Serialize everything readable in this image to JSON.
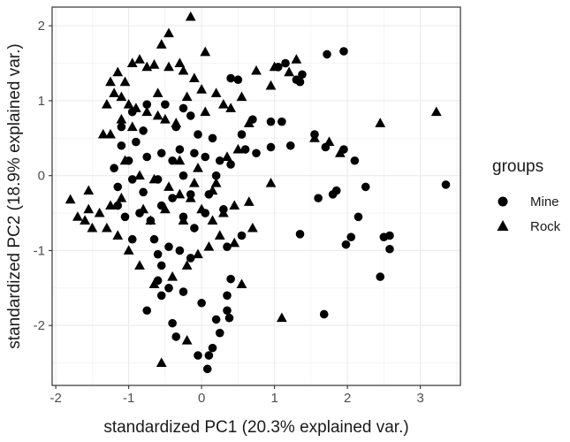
{
  "chart_data": {
    "type": "scatter",
    "title": "",
    "xlabel": "standardized PC1 (20.3% explained var.)",
    "ylabel": "standardized PC2 (18.9% explained var.)",
    "xlim": [
      -2.05,
      3.55
    ],
    "ylim": [
      -2.8,
      2.25
    ],
    "xticks": [
      -2,
      -1,
      0,
      1,
      2,
      3
    ],
    "yticks": [
      -2,
      -1,
      0,
      1,
      2
    ],
    "grid": true,
    "legend": {
      "title": "groups",
      "placement": "right",
      "entries": [
        {
          "label": "Mine",
          "marker": "circle"
        },
        {
          "label": "Rock",
          "marker": "triangle"
        }
      ]
    },
    "series": [
      {
        "name": "Mine",
        "marker": "circle",
        "points": [
          [
            1.72,
            1.62
          ],
          [
            1.95,
            1.66
          ],
          [
            1.38,
            1.35
          ],
          [
            1.3,
            1.28
          ],
          [
            1.05,
            1.45
          ],
          [
            1.15,
            1.5
          ],
          [
            1.35,
            1.25
          ],
          [
            0.5,
            1.28
          ],
          [
            0.4,
            1.3
          ],
          [
            1.55,
            0.55
          ],
          [
            1.7,
            0.38
          ],
          [
            1.22,
            0.4
          ],
          [
            0.95,
            0.38
          ],
          [
            0.6,
            0.35
          ],
          [
            0.7,
            0.75
          ],
          [
            0.55,
            0.55
          ],
          [
            0.95,
            0.72
          ],
          [
            1.1,
            0.72
          ],
          [
            0.75,
            0.3
          ],
          [
            2.1,
            0.2
          ],
          [
            1.95,
            0.35
          ],
          [
            2.25,
            -0.15
          ],
          [
            1.8,
            -0.25
          ],
          [
            1.85,
            -0.2
          ],
          [
            1.6,
            -0.3
          ],
          [
            1.35,
            -0.78
          ],
          [
            2.15,
            -0.55
          ],
          [
            2.05,
            -0.82
          ],
          [
            1.98,
            -0.92
          ],
          [
            2.5,
            -0.82
          ],
          [
            2.58,
            -0.8
          ],
          [
            2.58,
            -0.98
          ],
          [
            2.45,
            -1.35
          ],
          [
            1.68,
            -1.85
          ],
          [
            3.35,
            -0.12
          ],
          [
            0.35,
            -0.95
          ],
          [
            0.4,
            -1.38
          ],
          [
            0.35,
            -1.6
          ],
          [
            0.38,
            -1.9
          ],
          [
            0.35,
            -1.8
          ],
          [
            0.0,
            -1.7
          ],
          [
            0.2,
            -1.92
          ],
          [
            0.25,
            -2.1
          ],
          [
            -0.4,
            -1.97
          ],
          [
            -0.35,
            -2.15
          ],
          [
            0.1,
            -2.4
          ],
          [
            0.15,
            -2.3
          ],
          [
            -0.05,
            -2.4
          ],
          [
            0.08,
            -2.58
          ],
          [
            -0.75,
            -1.8
          ],
          [
            -0.55,
            -1.6
          ],
          [
            -0.25,
            -1.55
          ],
          [
            -0.55,
            -1.2
          ],
          [
            -0.3,
            -1.0
          ],
          [
            -0.65,
            -0.85
          ],
          [
            -0.85,
            -0.5
          ],
          [
            -1.05,
            -0.55
          ],
          [
            -0.95,
            -0.85
          ],
          [
            -0.45,
            -0.95
          ],
          [
            -0.15,
            -1.1
          ],
          [
            -0.25,
            -0.55
          ],
          [
            -0.55,
            -0.4
          ],
          [
            -0.8,
            -0.22
          ],
          [
            -0.95,
            -0.05
          ],
          [
            -0.6,
            -0.05
          ],
          [
            -0.4,
            0.2
          ],
          [
            -0.25,
            0.0
          ],
          [
            -0.1,
            0.3
          ],
          [
            -0.3,
            0.35
          ],
          [
            -0.55,
            0.3
          ],
          [
            -0.75,
            0.25
          ],
          [
            -0.9,
            0.45
          ],
          [
            -1.1,
            0.4
          ],
          [
            -1.1,
            0.65
          ],
          [
            -0.95,
            0.85
          ],
          [
            -0.75,
            0.95
          ],
          [
            -0.5,
            0.95
          ],
          [
            -0.25,
            0.9
          ],
          [
            -0.15,
            0.8
          ],
          [
            -0.05,
            0.55
          ],
          [
            0.15,
            0.5
          ],
          [
            0.25,
            0.2
          ],
          [
            0.2,
            0.0
          ],
          [
            0.1,
            -0.25
          ],
          [
            0.05,
            -0.5
          ],
          [
            -0.1,
            -0.7
          ],
          [
            -0.6,
            -1.05
          ],
          [
            -1.15,
            -0.15
          ],
          [
            -1.2,
            0.1
          ],
          [
            -1.15,
            -0.4
          ],
          [
            -0.7,
            -0.6
          ],
          [
            -0.4,
            -0.3
          ],
          [
            -0.15,
            -0.25
          ],
          [
            0.3,
            -0.45
          ],
          [
            0.55,
            -0.8
          ],
          [
            -0.8,
            0.6
          ],
          [
            -1.0,
            0.2
          ],
          [
            -0.35,
            0.65
          ],
          [
            0.05,
            0.25
          ],
          [
            0.4,
            0.15
          ],
          [
            -0.6,
            -1.4
          ],
          [
            -0.45,
            -1.5
          ]
        ]
      },
      {
        "name": "Rock",
        "marker": "triangle",
        "points": [
          [
            -0.15,
            2.12
          ],
          [
            -0.45,
            1.9
          ],
          [
            -0.55,
            1.75
          ],
          [
            -0.85,
            1.55
          ],
          [
            -0.95,
            1.5
          ],
          [
            -0.65,
            1.48
          ],
          [
            -0.45,
            1.45
          ],
          [
            -0.3,
            1.5
          ],
          [
            -0.25,
            1.4
          ],
          [
            -0.1,
            1.3
          ],
          [
            0.05,
            1.65
          ],
          [
            -0.75,
            1.45
          ],
          [
            -1.15,
            1.38
          ],
          [
            -1.25,
            1.25
          ],
          [
            -1.2,
            1.1
          ],
          [
            -1.1,
            1.05
          ],
          [
            -1.0,
            0.95
          ],
          [
            -0.9,
            0.9
          ],
          [
            -0.75,
            0.85
          ],
          [
            -0.6,
            0.8
          ],
          [
            -0.5,
            0.75
          ],
          [
            -0.35,
            0.7
          ],
          [
            -0.2,
            1.05
          ],
          [
            0.0,
            1.15
          ],
          [
            0.2,
            1.1
          ],
          [
            0.3,
            0.95
          ],
          [
            0.4,
            0.9
          ],
          [
            0.55,
            1.05
          ],
          [
            0.75,
            1.4
          ],
          [
            0.95,
            1.2
          ],
          [
            1.2,
            1.38
          ],
          [
            1.3,
            1.55
          ],
          [
            1.0,
            1.45
          ],
          [
            0.5,
            0.35
          ],
          [
            1.55,
            0.5
          ],
          [
            1.75,
            0.45
          ],
          [
            1.9,
            0.3
          ],
          [
            2.45,
            0.7
          ],
          [
            3.22,
            0.85
          ],
          [
            -1.1,
            0.75
          ],
          [
            -1.25,
            0.55
          ],
          [
            -1.35,
            0.55
          ],
          [
            -1.3,
            0.95
          ],
          [
            -1.05,
            0.2
          ],
          [
            -0.85,
            0.0
          ],
          [
            -0.65,
            -0.05
          ],
          [
            -0.45,
            -0.15
          ],
          [
            -0.3,
            -0.25
          ],
          [
            -0.15,
            -0.3
          ],
          [
            0.0,
            -0.45
          ],
          [
            0.15,
            -0.6
          ],
          [
            0.3,
            -0.5
          ],
          [
            0.45,
            -0.4
          ],
          [
            0.65,
            -0.35
          ],
          [
            0.7,
            -0.7
          ],
          [
            0.25,
            -0.8
          ],
          [
            0.1,
            -0.95
          ],
          [
            -0.05,
            -1.05
          ],
          [
            -0.2,
            -1.2
          ],
          [
            -0.4,
            -1.35
          ],
          [
            -0.65,
            -1.45
          ],
          [
            -0.85,
            -1.2
          ],
          [
            -1.0,
            -1.0
          ],
          [
            -1.15,
            -0.8
          ],
          [
            -1.3,
            -0.7
          ],
          [
            -1.5,
            -0.7
          ],
          [
            -1.6,
            -0.6
          ],
          [
            -1.7,
            -0.55
          ],
          [
            -1.55,
            -0.45
          ],
          [
            -1.4,
            -0.5
          ],
          [
            -1.25,
            -0.4
          ],
          [
            -1.1,
            -0.3
          ],
          [
            -1.55,
            -0.2
          ],
          [
            -1.8,
            -0.32
          ],
          [
            -1.6,
            -0.6
          ],
          [
            -0.7,
            -0.6
          ],
          [
            -0.5,
            -0.45
          ],
          [
            0.55,
            -1.45
          ],
          [
            0.45,
            -0.9
          ],
          [
            0.95,
            -0.1
          ],
          [
            1.1,
            -1.9
          ],
          [
            -0.2,
            -2.2
          ],
          [
            -0.55,
            -2.5
          ],
          [
            0.15,
            -0.2
          ],
          [
            0.35,
            0.25
          ],
          [
            -0.05,
            0.1
          ],
          [
            -0.25,
            -0.6
          ],
          [
            -0.8,
            -0.45
          ],
          [
            -0.95,
            0.65
          ],
          [
            -0.3,
            0.2
          ],
          [
            -0.1,
            -0.1
          ],
          [
            0.2,
            -0.1
          ],
          [
            0.05,
            0.85
          ],
          [
            -1.05,
            1.25
          ],
          [
            -0.6,
            1.1
          ],
          [
            0.65,
            0.7
          ]
        ]
      }
    ]
  }
}
